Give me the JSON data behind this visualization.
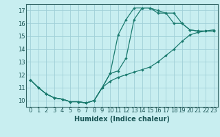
{
  "xlabel": "Humidex (Indice chaleur)",
  "bg_color": "#c8eef0",
  "line_color": "#1a7a6e",
  "grid_color": "#a0d0d8",
  "xlim": [
    -0.5,
    23.5
  ],
  "ylim": [
    9.5,
    17.5
  ],
  "xticks": [
    0,
    1,
    2,
    3,
    4,
    5,
    6,
    7,
    8,
    9,
    10,
    11,
    12,
    13,
    14,
    15,
    16,
    17,
    18,
    19,
    20,
    21,
    22,
    23
  ],
  "yticks": [
    10,
    11,
    12,
    13,
    14,
    15,
    16,
    17
  ],
  "curve1_x": [
    0,
    1,
    2,
    3,
    4,
    5,
    6,
    7,
    8,
    9,
    10,
    11,
    12,
    13,
    14,
    15,
    16,
    17,
    18,
    19,
    20,
    21,
    22,
    23
  ],
  "curve1_y": [
    11.6,
    11.0,
    10.5,
    10.2,
    10.1,
    9.9,
    9.9,
    9.8,
    10.0,
    11.0,
    11.5,
    11.8,
    12.0,
    12.2,
    12.4,
    12.6,
    13.0,
    13.5,
    14.0,
    14.6,
    15.1,
    15.3,
    15.4,
    15.5
  ],
  "curve2_x": [
    0,
    1,
    2,
    3,
    4,
    5,
    6,
    7,
    8,
    9,
    10,
    11,
    12,
    13,
    14,
    15,
    16,
    17,
    18,
    19,
    20,
    21,
    22,
    23
  ],
  "curve2_y": [
    11.6,
    11.0,
    10.5,
    10.2,
    10.1,
    9.9,
    9.9,
    9.8,
    10.0,
    11.0,
    12.1,
    12.3,
    13.3,
    16.3,
    17.2,
    17.2,
    17.0,
    16.8,
    16.0,
    16.0,
    15.5,
    15.4,
    15.4,
    15.4
  ],
  "curve3_x": [
    0,
    1,
    2,
    3,
    4,
    5,
    6,
    7,
    8,
    9,
    10,
    11,
    12,
    13,
    14,
    15,
    16,
    17,
    18,
    19,
    20,
    21,
    22,
    23
  ],
  "curve3_y": [
    11.6,
    11.0,
    10.5,
    10.2,
    10.1,
    9.9,
    9.9,
    9.8,
    10.0,
    11.0,
    12.1,
    15.1,
    16.3,
    17.2,
    17.2,
    17.2,
    16.8,
    16.8,
    16.8,
    16.0,
    15.5,
    15.4,
    15.4,
    15.4
  ],
  "xlabel_fontsize": 7.0,
  "tick_fontsize": 6.0,
  "linewidth": 0.9,
  "markersize": 2.2
}
